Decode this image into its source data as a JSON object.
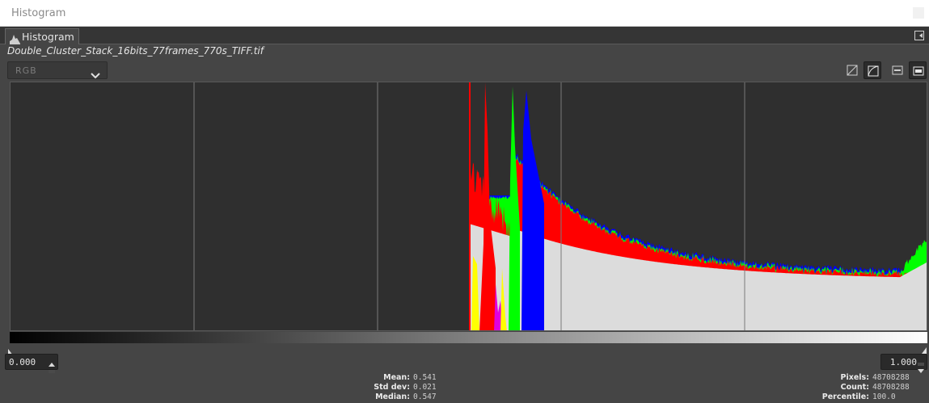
{
  "window": {
    "title": "Histogram"
  },
  "tab": {
    "label": "Histogram",
    "icon": "histogram-icon"
  },
  "file": {
    "name": "Double_Cluster_Stack_16bits_77frames_770s_TIFF.tif"
  },
  "channel": {
    "selected": "RGB"
  },
  "toolbar": {
    "buttons": [
      "linear-scale-icon",
      "log-scale-icon",
      "display-mode-1-icon",
      "display-mode-2-icon"
    ],
    "active": [
      false,
      true,
      false,
      true
    ]
  },
  "range": {
    "low": "0.000",
    "high": "1.000"
  },
  "stats": {
    "mean_label": "Mean:",
    "mean": "0.541",
    "stddev_label": "Std dev:",
    "stddev": "0.021",
    "median_label": "Median:",
    "median": "0.547",
    "pixels_label": "Pixels:",
    "pixels": "48708288",
    "count_label": "Count:",
    "count": "48708288",
    "percentile_label": "Percentile:",
    "percentile": "100.0"
  },
  "colors": {
    "red": "#ff0000",
    "green": "#00ff00",
    "blue": "#0000ff",
    "cyan": "#00ffff",
    "yellow": "#ffff00",
    "magenta": "#e000e0",
    "white": "#dcdcdc",
    "background": "#2f2f2f",
    "gridline": "#7a7a7a"
  }
}
